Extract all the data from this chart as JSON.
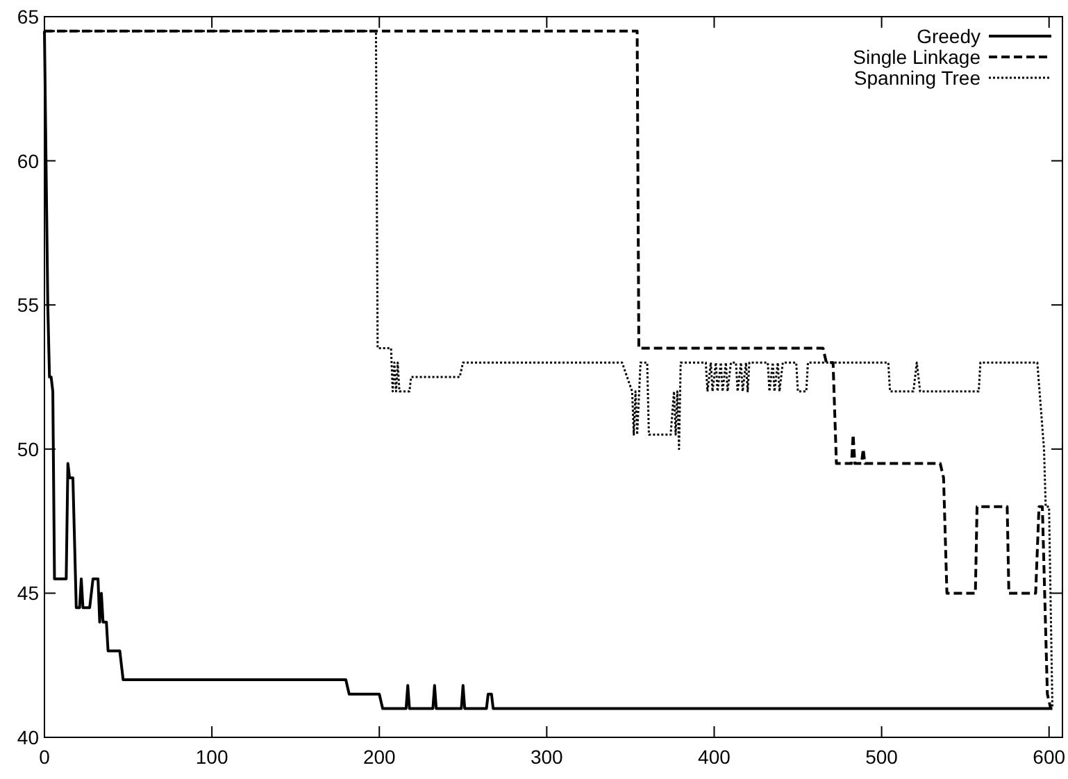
{
  "chart_data": {
    "type": "line",
    "xlim": [
      0,
      608
    ],
    "ylim": [
      40,
      65
    ],
    "xticks": [
      0,
      100,
      200,
      300,
      400,
      500,
      600
    ],
    "yticks": [
      40,
      45,
      50,
      55,
      60,
      65
    ],
    "grid": false,
    "legend": "top right",
    "series": [
      {
        "name": "Greedy",
        "color": "#000000",
        "line_style": "solid",
        "x": [
          0,
          2,
          3,
          4,
          5,
          6,
          13,
          14,
          15,
          17,
          19,
          21,
          22,
          23,
          27,
          29,
          32,
          33,
          34,
          35,
          37,
          38,
          45,
          47,
          180,
          182,
          200,
          202,
          216,
          217,
          218,
          232,
          233,
          234,
          249,
          250,
          251,
          264,
          265,
          267,
          268,
          602
        ],
        "values": [
          64.5,
          55,
          52.5,
          52.5,
          52,
          45.5,
          45.5,
          49.5,
          49,
          49,
          44.5,
          44.5,
          45.5,
          44.5,
          44.5,
          45.5,
          45.5,
          44,
          45,
          44,
          44,
          43,
          43,
          42,
          42,
          41.5,
          41.5,
          41,
          41,
          41.8,
          41,
          41,
          41.8,
          41,
          41,
          41.8,
          41,
          41,
          41.5,
          41.5,
          41,
          41
        ]
      },
      {
        "name": "Single Linkage",
        "color": "#000000",
        "line_style": "dashed",
        "x": [
          0,
          354,
          355,
          465,
          467,
          471,
          473,
          482,
          483,
          484,
          488,
          489,
          490,
          535,
          537,
          539,
          556,
          557,
          575,
          576,
          592,
          594,
          596,
          599,
          601
        ],
        "values": [
          64.5,
          64.5,
          53.5,
          53.5,
          53,
          53,
          49.5,
          49.5,
          50.5,
          49.5,
          49.5,
          50,
          49.5,
          49.5,
          49,
          45,
          45,
          48,
          48,
          45,
          45,
          48,
          48,
          41.5,
          41
        ]
      },
      {
        "name": "Spanning Tree",
        "color": "#000000",
        "line_style": "dotted",
        "x": [
          0,
          198,
          199,
          207,
          208,
          209,
          210,
          211,
          212,
          218,
          219,
          248,
          250,
          345,
          348,
          351,
          352,
          353,
          354,
          356,
          360,
          361,
          374,
          376,
          377,
          378,
          379,
          380,
          395,
          396,
          398,
          399,
          401,
          402,
          404,
          405,
          407,
          408,
          410,
          413,
          414,
          416,
          417,
          419,
          420,
          421,
          432,
          433,
          435,
          436,
          438,
          439,
          441,
          449,
          450,
          455,
          456,
          504,
          505,
          519,
          521,
          523,
          558,
          559,
          593,
          597,
          598,
          600,
          602
        ],
        "values": [
          64.5,
          64.5,
          53.5,
          53.5,
          52,
          53,
          52,
          53,
          52,
          52,
          52.5,
          52.5,
          53,
          53,
          52.5,
          52,
          50.5,
          52,
          50.5,
          53,
          53,
          50.5,
          50.5,
          52,
          50.5,
          52,
          50,
          53,
          53,
          52,
          53,
          52,
          53,
          52,
          53,
          52,
          53,
          52,
          53,
          53,
          52,
          53,
          52,
          53,
          52,
          53,
          53,
          52,
          53,
          52,
          53,
          52,
          53,
          53,
          52,
          52,
          53,
          53,
          52,
          52,
          53,
          52,
          52,
          53,
          53,
          50,
          48,
          48,
          41
        ]
      }
    ]
  }
}
